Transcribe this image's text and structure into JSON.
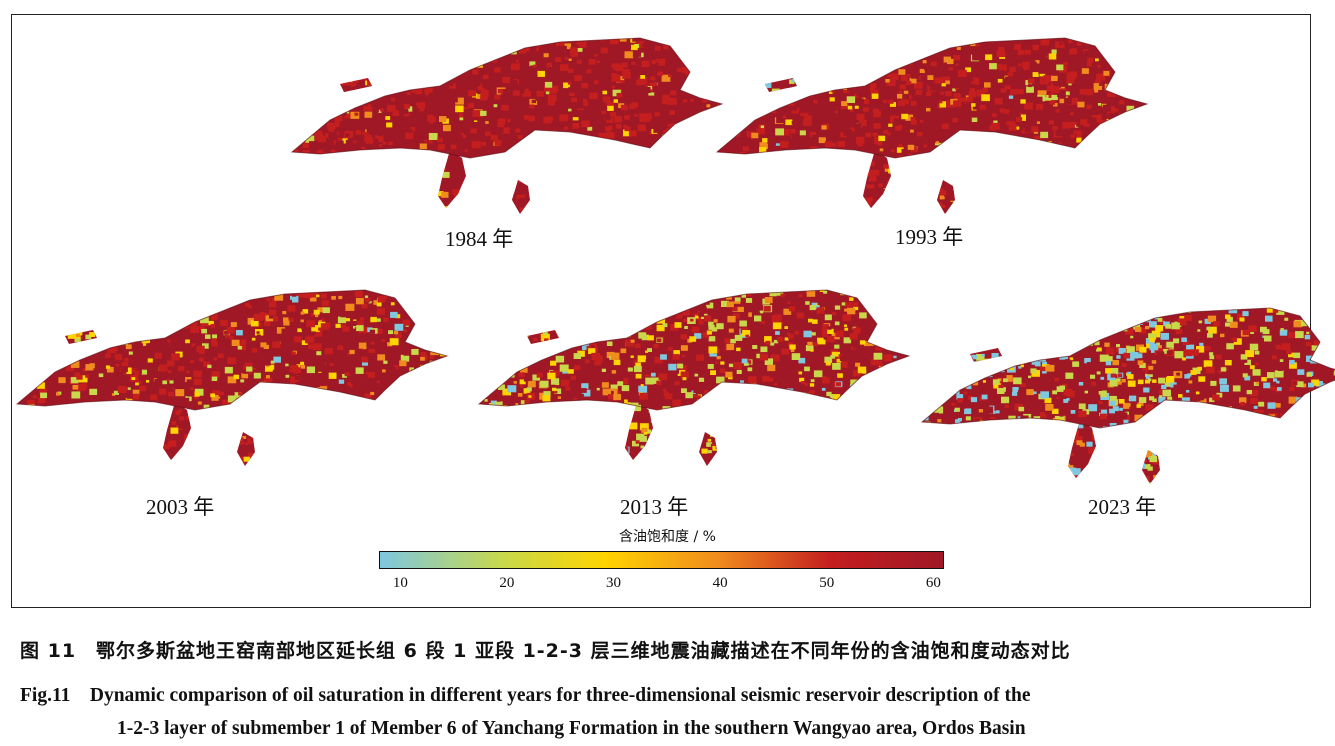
{
  "figure": {
    "panels": [
      {
        "year_label": "1984 年"
      },
      {
        "year_label": "1993 年"
      },
      {
        "year_label": "2003 年"
      },
      {
        "year_label": "2013 年"
      },
      {
        "year_label": "2023 年"
      }
    ],
    "colorbar": {
      "title": "含油饱和度 / %",
      "ticks": [
        "10",
        "20",
        "30",
        "40",
        "50",
        "60"
      ],
      "min": 8,
      "max": 61,
      "colors": [
        "#7ec8e0",
        "#c8d84a",
        "#ffd400",
        "#f08c1e",
        "#c41e1e",
        "#a01826"
      ]
    }
  },
  "caption": {
    "cn": "图 11　鄂尔多斯盆地王窑南部地区延长组 6 段 1 亚段 1-2-3 层三维地震油藏描述在不同年份的含油饱和度动态对比",
    "en_line1": "Fig.11　Dynamic comparison of oil saturation in different years for three-dimensional seismic reservoir description of the",
    "en_line2": "1-2-3 layer of submember 1 of Member 6 of Yanchang Formation in the southern Wangyao area, Ordos Basin"
  }
}
